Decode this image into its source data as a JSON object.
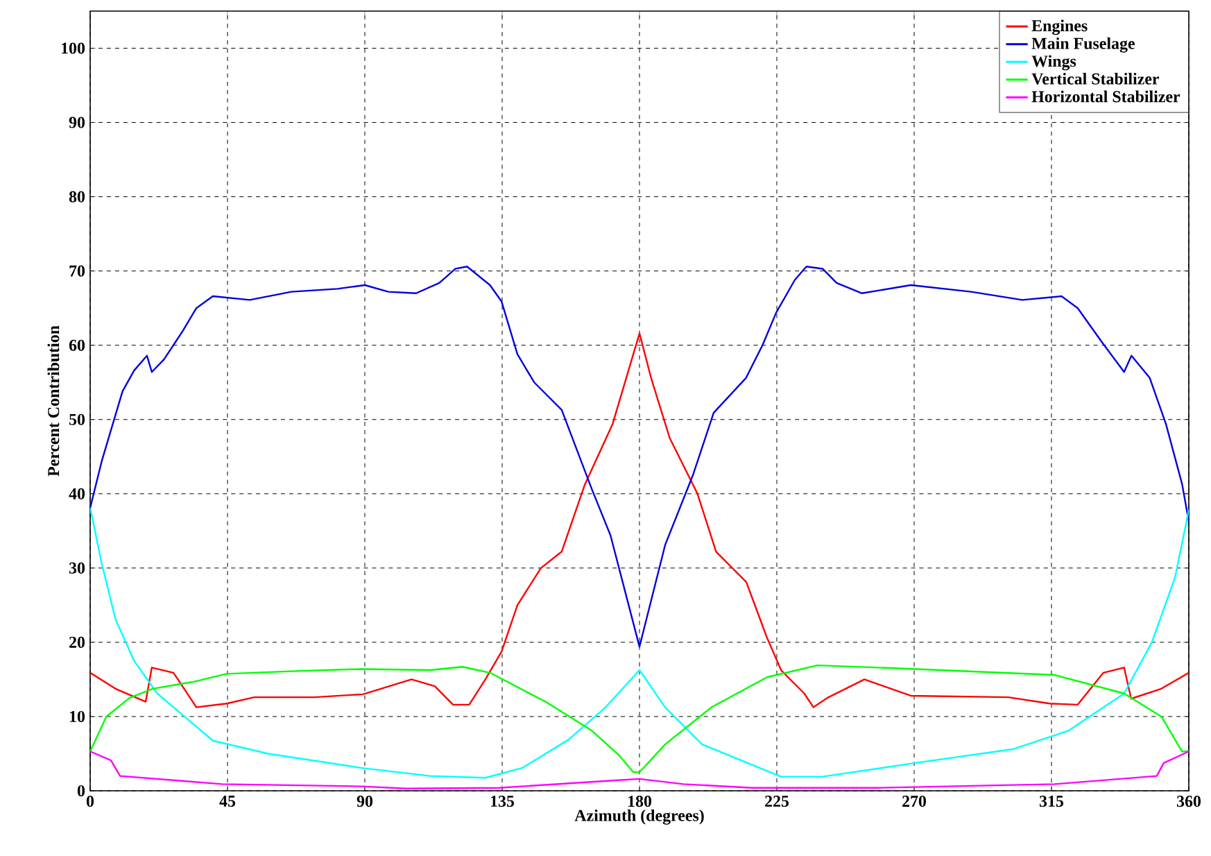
{
  "chart_data": {
    "type": "line",
    "xlabel": "Azimuth (degrees)",
    "ylabel": "Percent Contribution",
    "xlim": [
      0,
      360
    ],
    "ylim": [
      0,
      105
    ],
    "xticks": [
      0,
      45,
      90,
      135,
      180,
      225,
      270,
      315,
      360
    ],
    "yticks": [
      0,
      10,
      20,
      30,
      40,
      50,
      60,
      70,
      80,
      90,
      100
    ],
    "grid": true,
    "legend": "top right",
    "series": [
      {
        "name": "Engines",
        "color": "#ff0000",
        "x": [
          0,
          8.3,
          18.2,
          20.2,
          27.3,
          34.8,
          44.7,
          53.8,
          73.5,
          89.4,
          105.3,
          112.9,
          118.9,
          124.2,
          129.5,
          134.8,
          140,
          147.7,
          154.5,
          162.1,
          171.2,
          180,
          183.8,
          189.9,
          199,
          205.1,
          215,
          221.8,
          226.4,
          234,
          237,
          241.5,
          253.7,
          268.9,
          300.8,
          314.5,
          323.6,
          332,
          338.8,
          341.1,
          351,
          360
        ],
        "values": [
          15.9,
          13.75,
          12,
          16.6,
          15.9,
          11.25,
          11.75,
          12.6,
          12.6,
          13,
          15,
          14.1,
          11.6,
          11.6,
          15,
          18.75,
          25,
          30,
          32.2,
          41.25,
          49.4,
          61.6,
          55.6,
          47.5,
          40,
          32.2,
          28.1,
          20.6,
          16.25,
          13.1,
          11.25,
          12.5,
          15,
          12.8,
          12.6,
          11.75,
          11.6,
          15.9,
          16.6,
          12.4,
          13.75,
          15.9
        ]
      },
      {
        "name": "Main Fuselage",
        "color": "#0000e0",
        "x": [
          0,
          3.8,
          10.6,
          14.4,
          18.6,
          20.2,
          24.2,
          30.3,
          34.8,
          40.2,
          52.3,
          65.9,
          81,
          90,
          97.7,
          106.8,
          114.4,
          119.7,
          123.5,
          131,
          134.8,
          140,
          145.5,
          154.5,
          164.4,
          170.5,
          180,
          188.4,
          197.5,
          204.3,
          214.9,
          220.3,
          224.8,
          230.9,
          234.7,
          240,
          244.6,
          252.9,
          268.9,
          288.7,
          305.4,
          318.3,
          323.6,
          331.2,
          338.8,
          341.2,
          347.2,
          352.5,
          357.8,
          360
        ],
        "values": [
          38.1,
          44.4,
          53.8,
          56.6,
          58.6,
          56.4,
          58.1,
          61.9,
          65,
          66.6,
          66.1,
          67.2,
          67.6,
          68.1,
          67.2,
          67,
          68.4,
          70.3,
          70.6,
          68.1,
          65.9,
          58.8,
          55,
          51.3,
          40.6,
          34.4,
          19.4,
          33.1,
          42.5,
          50.9,
          55.6,
          60,
          64.4,
          68.8,
          70.6,
          70.3,
          68.4,
          67,
          68.1,
          67.2,
          66.1,
          66.6,
          65,
          60.6,
          56.4,
          58.6,
          55.6,
          49.4,
          41.3,
          36.3
        ]
      },
      {
        "name": "Wings",
        "color": "#00ffff",
        "x": [
          0,
          3.8,
          8.3,
          14.4,
          22,
          32.6,
          40.2,
          58.3,
          88.6,
          111.4,
          129.5,
          141.7,
          156.8,
          168.9,
          180,
          188.4,
          200.5,
          226.4,
          240,
          270.4,
          302.3,
          320.6,
          338.8,
          347.9,
          355.5,
          360
        ],
        "values": [
          38.1,
          30.6,
          23.1,
          17.5,
          13.1,
          9.4,
          6.75,
          5,
          3.1,
          2,
          1.75,
          3.1,
          6.9,
          11.25,
          16.25,
          11.25,
          6.25,
          1.9,
          1.9,
          3.75,
          5.6,
          8.1,
          13.1,
          20,
          28.75,
          37.8
        ]
      },
      {
        "name": "Vertical Stabilizer",
        "color": "#00ff00",
        "x": [
          0,
          5.3,
          12.9,
          20.5,
          34.1,
          44.7,
          65.9,
          88.6,
          111.4,
          122,
          131,
          149.2,
          164.4,
          173.5,
          178,
          180,
          188.4,
          203.6,
          221.8,
          238.3,
          270.4,
          316,
          338.8,
          351,
          357.8,
          360
        ],
        "values": [
          5.3,
          10,
          12.5,
          13.75,
          14.7,
          15.75,
          16.1,
          16.4,
          16.25,
          16.7,
          15.9,
          12,
          8.1,
          4.7,
          2.5,
          2.5,
          6.25,
          11.25,
          15.3,
          16.9,
          16.4,
          15.6,
          13.1,
          10,
          5.3,
          5.3
        ]
      },
      {
        "name": "Horizontal Stabilizer",
        "color": "#ff00ff",
        "x": [
          0,
          6.8,
          9.8,
          43.2,
          88.6,
          103.8,
          134.1,
          172,
          180,
          194.4,
          217,
          258,
          316,
          349.5,
          351.8,
          360
        ],
        "values": [
          5.3,
          4.1,
          2,
          0.9,
          0.6,
          0.3,
          0.4,
          1.4,
          1.6,
          0.9,
          0.4,
          0.4,
          0.9,
          2,
          3.75,
          5.3
        ]
      }
    ]
  }
}
